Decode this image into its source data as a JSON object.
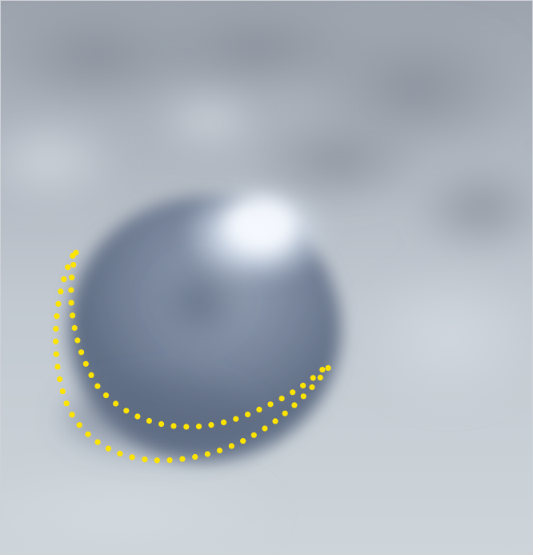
{
  "image": {
    "description_colors": {
      "background_top": "#9aa1ab",
      "background_mid": "#c3cad2",
      "background_bottom": "#cbd3d8",
      "sphere_dark": "#5d6c82",
      "sphere_mid": "#8693a6",
      "highlight": "#eef5ff",
      "dots": "#ffe400"
    }
  },
  "annotations": {
    "dotted_arcs": [
      {
        "name": "inner-dotted-arc"
      },
      {
        "name": "outer-dotted-arc"
      }
    ]
  }
}
